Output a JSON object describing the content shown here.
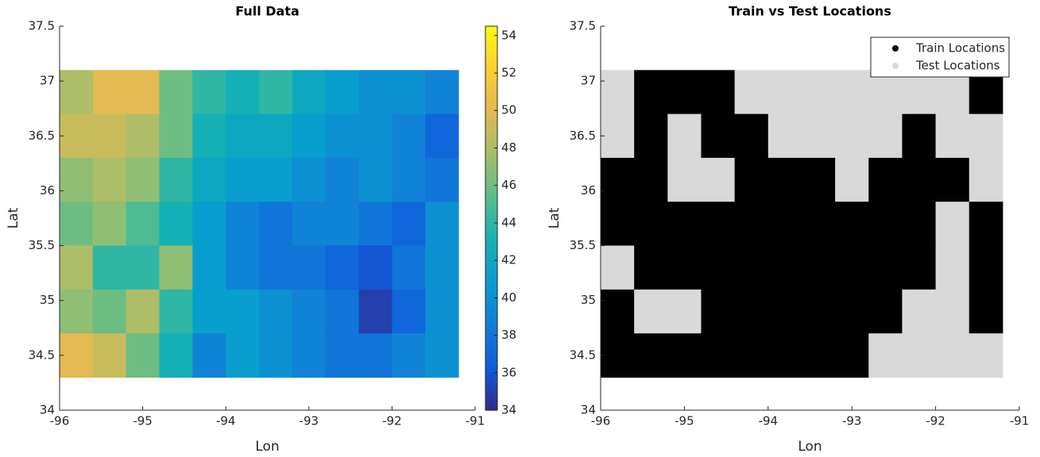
{
  "chart_data": [
    {
      "type": "heatmap",
      "title": "Full Data",
      "xlabel": "Lon",
      "ylabel": "Lat",
      "xlim": [
        -96,
        -91
      ],
      "ylim": [
        34,
        37.5
      ],
      "xticks": [
        -96,
        -95,
        -94,
        -93,
        -92,
        -91
      ],
      "yticks": [
        34,
        34.5,
        35,
        35.5,
        36,
        36.5,
        37,
        37.5
      ],
      "x": [
        -95.8,
        -95.4,
        -95.0,
        -94.6,
        -94.2,
        -93.8,
        -93.4,
        -93.0,
        -92.6,
        -92.2,
        -91.8,
        -91.4
      ],
      "y": [
        36.9,
        36.5,
        36.1,
        35.7,
        35.3,
        34.9,
        34.5
      ],
      "z": [
        [
          48,
          50,
          50,
          46,
          44,
          43,
          44,
          42,
          41,
          40,
          40,
          39
        ],
        [
          49,
          49,
          48,
          46,
          43,
          42,
          42,
          41,
          40,
          40,
          39,
          37
        ],
        [
          47,
          48,
          47,
          44,
          42,
          41,
          41,
          40,
          39,
          40,
          39,
          38
        ],
        [
          46,
          47,
          45,
          43,
          41,
          39,
          38,
          39,
          39,
          38,
          37,
          40
        ],
        [
          48,
          44,
          44,
          47,
          41,
          39,
          38,
          38,
          37,
          36,
          38,
          40
        ],
        [
          47,
          46,
          48,
          44,
          41,
          41,
          40,
          39,
          38,
          35,
          37,
          40
        ],
        [
          50,
          49,
          46,
          43,
          39,
          41,
          40,
          39,
          38,
          38,
          39,
          40
        ]
      ],
      "colormap": "parula",
      "clim": [
        34,
        54.5
      ],
      "cticks": [
        34,
        36,
        38,
        40,
        42,
        44,
        46,
        48,
        50,
        52,
        54
      ]
    },
    {
      "type": "classmap",
      "title": "Train vs Test Locations",
      "xlabel": "Lon",
      "ylabel": "Lat",
      "xlim": [
        -96,
        -91
      ],
      "ylim": [
        34,
        37.5
      ],
      "xticks": [
        -96,
        -95,
        -94,
        -93,
        -92,
        -91
      ],
      "yticks": [
        34,
        34.5,
        35,
        35.5,
        36,
        36.5,
        37,
        37.5
      ],
      "series": [
        {
          "name": "Train Locations",
          "color": "#000000"
        },
        {
          "name": "Test Locations",
          "color": "#d9d9d9"
        }
      ],
      "legend": "upper right",
      "x": [
        -95.8,
        -95.4,
        -95.0,
        -94.6,
        -94.2,
        -93.8,
        -93.4,
        -93.0,
        -92.6,
        -92.2,
        -91.8,
        -91.4
      ],
      "y": [
        36.9,
        36.5,
        36.1,
        35.7,
        35.3,
        34.9,
        34.5
      ],
      "z": [
        [
          1,
          0,
          0,
          0,
          1,
          1,
          1,
          1,
          1,
          1,
          1,
          0
        ],
        [
          1,
          0,
          1,
          0,
          0,
          1,
          1,
          1,
          1,
          0,
          1,
          1
        ],
        [
          0,
          0,
          1,
          1,
          0,
          0,
          0,
          1,
          0,
          0,
          0,
          1
        ],
        [
          0,
          0,
          0,
          0,
          0,
          0,
          0,
          0,
          0,
          0,
          1,
          0
        ],
        [
          1,
          0,
          0,
          0,
          0,
          0,
          0,
          0,
          0,
          0,
          1,
          0
        ],
        [
          0,
          1,
          1,
          0,
          0,
          0,
          0,
          0,
          0,
          1,
          1,
          0
        ],
        [
          0,
          0,
          0,
          0,
          0,
          0,
          0,
          0,
          1,
          1,
          1,
          1
        ]
      ]
    }
  ]
}
